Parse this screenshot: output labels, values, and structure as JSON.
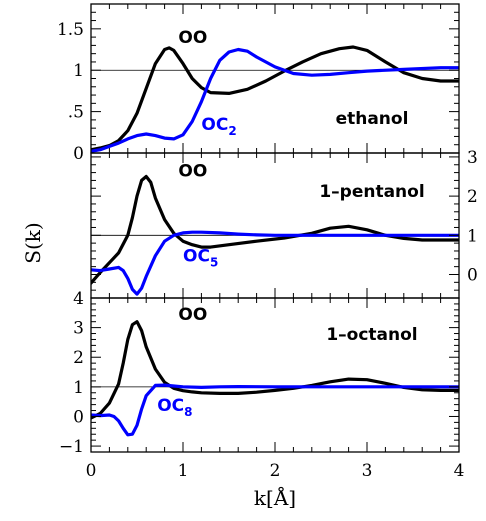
{
  "chart_data": {
    "type": "line",
    "xlabel": "k[Å]",
    "ylabel": "S(k)",
    "xlim": [
      0,
      4
    ],
    "x_ticks": [
      "0",
      "1",
      "2",
      "3",
      "4"
    ],
    "colors": {
      "OO": "#000000",
      "OC": "#0000ff",
      "reference": "#000000"
    },
    "panels": [
      {
        "id": "ethanol",
        "label": "ethanol",
        "ylim": [
          0,
          1.8
        ],
        "y_axis_side": "left",
        "y_ticks": [
          0,
          0.5,
          1,
          1.5
        ],
        "y_tick_labels": [
          "0",
          ".5",
          "1",
          "1.5"
        ],
        "reference_line": 1,
        "annotations": [
          {
            "text": "OO",
            "series": "OO",
            "x": 0.95,
            "y": 1.33
          },
          {
            "text": "OC",
            "sub": "2",
            "series": "OC",
            "x": 1.2,
            "y": 0.28
          }
        ],
        "series": [
          {
            "name": "OO",
            "x": [
              0,
              0.1,
              0.2,
              0.3,
              0.4,
              0.5,
              0.6,
              0.7,
              0.8,
              0.85,
              0.9,
              1.0,
              1.1,
              1.2,
              1.3,
              1.5,
              1.7,
              1.9,
              2.1,
              2.3,
              2.5,
              2.7,
              2.85,
              3.0,
              3.2,
              3.4,
              3.6,
              3.8,
              4.0
            ],
            "y": [
              0.04,
              0.06,
              0.09,
              0.15,
              0.27,
              0.48,
              0.78,
              1.08,
              1.25,
              1.27,
              1.24,
              1.08,
              0.9,
              0.79,
              0.73,
              0.72,
              0.77,
              0.87,
              0.99,
              1.1,
              1.2,
              1.26,
              1.28,
              1.24,
              1.1,
              0.97,
              0.9,
              0.87,
              0.87
            ]
          },
          {
            "name": "OC2",
            "x": [
              0,
              0.1,
              0.2,
              0.3,
              0.4,
              0.5,
              0.6,
              0.7,
              0.8,
              0.9,
              1.0,
              1.1,
              1.2,
              1.3,
              1.4,
              1.5,
              1.6,
              1.7,
              1.8,
              2.0,
              2.2,
              2.4,
              2.6,
              2.8,
              3.0,
              3.4,
              3.8,
              4.0
            ],
            "y": [
              0.02,
              0.04,
              0.08,
              0.12,
              0.17,
              0.21,
              0.23,
              0.21,
              0.18,
              0.17,
              0.22,
              0.38,
              0.62,
              0.9,
              1.12,
              1.22,
              1.25,
              1.23,
              1.16,
              1.04,
              0.96,
              0.94,
              0.95,
              0.97,
              0.99,
              1.01,
              1.03,
              1.03
            ]
          }
        ]
      },
      {
        "id": "1-pentanol",
        "label": "1–pentanol",
        "ylim": [
          -0.6,
          3.1
        ],
        "y_axis_side": "right",
        "y_ticks": [
          0,
          1,
          2,
          3
        ],
        "y_tick_labels": [
          "0",
          "1",
          "2",
          "3"
        ],
        "reference_line": 1,
        "annotations": [
          {
            "text": "OO",
            "series": "OO",
            "x": 0.95,
            "y": 2.5
          },
          {
            "text": "OC",
            "sub": "5",
            "series": "OC",
            "x": 1.0,
            "y": 0.33
          }
        ],
        "series": [
          {
            "name": "OO",
            "x": [
              0,
              0.1,
              0.2,
              0.3,
              0.4,
              0.45,
              0.5,
              0.55,
              0.6,
              0.65,
              0.7,
              0.8,
              0.9,
              1.0,
              1.1,
              1.2,
              1.3,
              1.5,
              1.8,
              2.1,
              2.4,
              2.6,
              2.8,
              3.0,
              3.2,
              3.4,
              3.6,
              3.8,
              4.0
            ],
            "y": [
              -0.22,
              0.05,
              0.3,
              0.55,
              1.0,
              1.45,
              2.0,
              2.4,
              2.5,
              2.35,
              1.95,
              1.4,
              1.05,
              0.85,
              0.76,
              0.7,
              0.7,
              0.76,
              0.85,
              0.93,
              1.05,
              1.18,
              1.23,
              1.14,
              1.0,
              0.92,
              0.88,
              0.88,
              0.88
            ]
          },
          {
            "name": "OC5",
            "x": [
              0,
              0.1,
              0.2,
              0.3,
              0.35,
              0.4,
              0.45,
              0.5,
              0.55,
              0.6,
              0.7,
              0.8,
              0.9,
              1.0,
              1.1,
              1.2,
              1.4,
              1.6,
              1.8,
              2.0,
              2.5,
              3.0,
              3.5,
              4.0
            ],
            "y": [
              0.12,
              0.1,
              0.14,
              0.18,
              0.1,
              -0.1,
              -0.38,
              -0.5,
              -0.35,
              -0.05,
              0.48,
              0.85,
              1.0,
              1.06,
              1.08,
              1.08,
              1.06,
              1.03,
              1.01,
              1.0,
              1.0,
              1.0,
              1.0,
              1.0
            ]
          }
        ]
      },
      {
        "id": "1-octanol",
        "label": "1–octanol",
        "ylim": [
          -1.2,
          4
        ],
        "y_axis_side": "left",
        "y_ticks": [
          -1,
          0,
          1,
          2,
          3,
          4
        ],
        "y_tick_labels": [
          "−1",
          "0",
          "1",
          "2",
          "3",
          "4"
        ],
        "reference_line": 1,
        "annotations": [
          {
            "text": "OO",
            "series": "OO",
            "x": 0.95,
            "y": 3.25
          },
          {
            "text": "OC",
            "sub": "8",
            "series": "OC",
            "x": 0.72,
            "y": 0.18
          }
        ],
        "series": [
          {
            "name": "OO",
            "x": [
              0,
              0.1,
              0.2,
              0.3,
              0.35,
              0.4,
              0.45,
              0.5,
              0.55,
              0.6,
              0.7,
              0.8,
              0.9,
              1.0,
              1.1,
              1.2,
              1.4,
              1.6,
              1.8,
              2.0,
              2.2,
              2.4,
              2.6,
              2.8,
              3.0,
              3.2,
              3.4,
              3.6,
              3.8,
              4.0
            ],
            "y": [
              -0.05,
              0.1,
              0.45,
              1.1,
              1.8,
              2.6,
              3.1,
              3.2,
              2.9,
              2.35,
              1.6,
              1.15,
              0.95,
              0.87,
              0.83,
              0.8,
              0.78,
              0.78,
              0.82,
              0.88,
              0.95,
              1.05,
              1.17,
              1.26,
              1.24,
              1.12,
              0.98,
              0.9,
              0.88,
              0.88
            ]
          },
          {
            "name": "OC8",
            "x": [
              0,
              0.1,
              0.2,
              0.25,
              0.3,
              0.35,
              0.4,
              0.45,
              0.5,
              0.55,
              0.6,
              0.7,
              0.8,
              0.9,
              1.0,
              1.2,
              1.4,
              1.6,
              2.0,
              2.5,
              3.0,
              3.5,
              4.0
            ],
            "y": [
              0.05,
              0.03,
              0.05,
              0.0,
              -0.15,
              -0.4,
              -0.62,
              -0.6,
              -0.3,
              0.25,
              0.7,
              1.05,
              1.06,
              1.03,
              1.0,
              0.98,
              1.0,
              1.01,
              1.0,
              1.0,
              1.0,
              1.0,
              1.0
            ]
          }
        ]
      }
    ]
  }
}
